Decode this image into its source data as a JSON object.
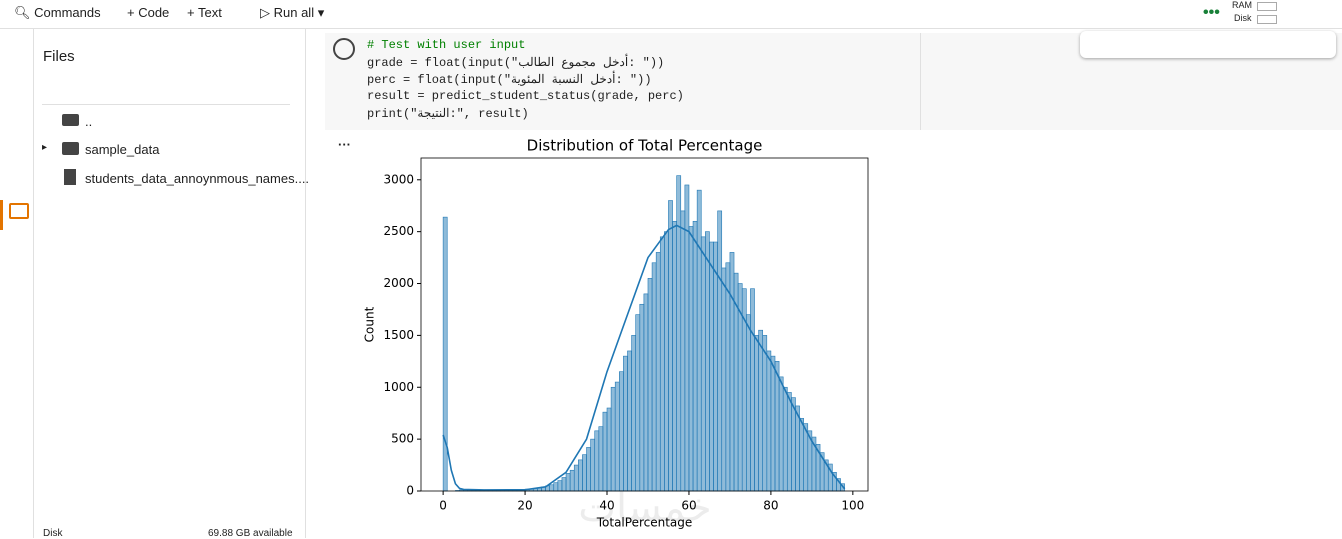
{
  "toolbar": {
    "commands": "Commands",
    "code": "+ Code",
    "text": "+ Text",
    "run_all": "Run all",
    "ram": "RAM",
    "disk": "Disk"
  },
  "sidebar": {
    "title": "Files",
    "items": [
      "..",
      "sample_data",
      "students_data_annoynmous_names...."
    ],
    "disk_label": "Disk",
    "disk_available": "69.88 GB available"
  },
  "cell": {
    "code": [
      "# Test with user input",
      "grade = float(input(\"أدخل مجموع الطالب: \"))",
      "perc = float(input(\"أدخل النسبة المئوية: \"))",
      "result = predict_student_status(grade, perc)",
      "print(\"النتيجة:\", result)"
    ]
  },
  "chart_data": {
    "type": "histogram",
    "title": "Distribution of Total Percentage",
    "x_label": "TotalPercentage",
    "y_label": "Count",
    "watermark": "خمسات",
    "color": "#1f77b4",
    "bins": [
      0,
      1,
      2,
      3,
      4,
      5,
      6,
      7,
      8,
      9,
      10,
      11,
      12,
      13,
      14,
      15,
      16,
      17,
      18,
      19,
      20,
      21,
      22,
      23,
      24,
      25,
      26,
      27,
      28,
      29,
      30,
      31,
      32,
      33,
      34,
      35,
      36,
      37,
      38,
      39,
      40,
      41,
      42,
      43,
      44,
      45,
      46,
      47,
      48,
      49,
      50,
      51,
      52,
      53,
      54,
      55,
      56,
      57,
      58,
      59,
      60,
      61,
      62,
      63,
      64,
      65,
      66,
      67,
      68,
      69,
      70,
      71,
      72,
      73,
      74,
      75,
      76,
      77,
      78,
      79,
      80,
      81,
      82,
      83,
      84,
      85,
      86,
      87,
      88,
      89,
      90,
      91,
      92,
      93,
      94,
      95,
      96,
      97,
      98
    ],
    "values": [
      2640,
      0,
      0,
      5,
      10,
      10,
      10,
      10,
      10,
      10,
      10,
      10,
      10,
      10,
      10,
      10,
      12,
      12,
      15,
      15,
      18,
      20,
      25,
      30,
      40,
      50,
      60,
      80,
      100,
      130,
      170,
      200,
      250,
      300,
      350,
      420,
      500,
      580,
      620,
      760,
      800,
      1000,
      1050,
      1150,
      1300,
      1350,
      1500,
      1700,
      1800,
      1900,
      2050,
      2200,
      2300,
      2450,
      2500,
      2800,
      2600,
      3040,
      2700,
      2950,
      2550,
      2600,
      2900,
      2450,
      2500,
      2400,
      2400,
      2700,
      2150,
      2200,
      2300,
      2100,
      2000,
      1950,
      1700,
      1950,
      1500,
      1550,
      1500,
      1350,
      1300,
      1250,
      1100,
      1000,
      950,
      900,
      820,
      700,
      650,
      580,
      520,
      450,
      370,
      300,
      260,
      180,
      120,
      70
    ],
    "kde": {
      "x": [
        0,
        1,
        2,
        3,
        4,
        5,
        10,
        20,
        25,
        30,
        35,
        40,
        45,
        50,
        55,
        57,
        60,
        65,
        70,
        75,
        80,
        85,
        90,
        95,
        98
      ],
      "values": [
        540,
        420,
        200,
        70,
        25,
        15,
        10,
        12,
        40,
        180,
        500,
        1150,
        1700,
        2250,
        2520,
        2560,
        2500,
        2200,
        1900,
        1550,
        1250,
        850,
        480,
        170,
        20
      ]
    },
    "xlim": [
      -5.4,
      103.7
    ],
    "ylim": [
      0,
      3210
    ],
    "xticks": [
      0,
      20,
      40,
      60,
      80,
      100
    ],
    "yticks": [
      0,
      500,
      1000,
      1500,
      2000,
      2500,
      3000
    ]
  }
}
